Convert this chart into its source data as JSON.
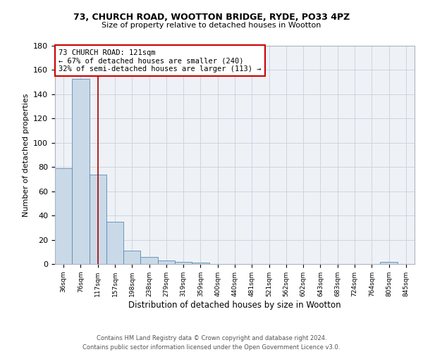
{
  "title1": "73, CHURCH ROAD, WOOTTON BRIDGE, RYDE, PO33 4PZ",
  "title2": "Size of property relative to detached houses in Wootton",
  "xlabel": "Distribution of detached houses by size in Wootton",
  "ylabel": "Number of detached properties",
  "bin_labels": [
    "36sqm",
    "76sqm",
    "117sqm",
    "157sqm",
    "198sqm",
    "238sqm",
    "279sqm",
    "319sqm",
    "359sqm",
    "400sqm",
    "440sqm",
    "481sqm",
    "521sqm",
    "562sqm",
    "602sqm",
    "643sqm",
    "683sqm",
    "724sqm",
    "764sqm",
    "805sqm",
    "845sqm"
  ],
  "bar_heights": [
    79,
    153,
    74,
    35,
    11,
    6,
    3,
    2,
    1,
    0,
    0,
    0,
    0,
    0,
    0,
    0,
    0,
    0,
    0,
    2,
    0
  ],
  "bar_color": "#c9d9e8",
  "bar_edge_color": "#5a8ab0",
  "property_line_x": 2,
  "property_line_color": "#aa0000",
  "annotation_text": "73 CHURCH ROAD: 121sqm\n← 67% of detached houses are smaller (240)\n32% of semi-detached houses are larger (113) →",
  "annotation_box_color": "#ffffff",
  "annotation_box_edge": "#cc0000",
  "ylim": [
    0,
    180
  ],
  "yticks": [
    0,
    20,
    40,
    60,
    80,
    100,
    120,
    140,
    160,
    180
  ],
  "footer_line1": "Contains HM Land Registry data © Crown copyright and database right 2024.",
  "footer_line2": "Contains public sector information licensed under the Open Government Licence v3.0.",
  "bg_color": "#eef2f7",
  "grid_color": "#c8d0db"
}
